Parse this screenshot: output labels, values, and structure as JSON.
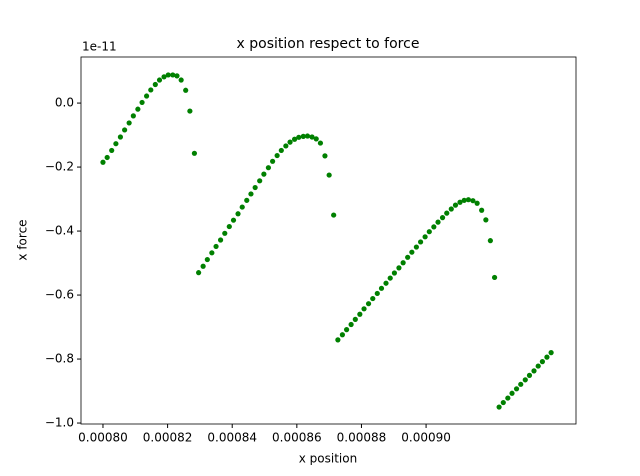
{
  "chart_data": {
    "type": "scatter",
    "title": "x position respect to force",
    "x_label": "x position",
    "y_label": "x force",
    "y_offset_label": "1e-11",
    "color": "#008000",
    "xlim": [
      0.0007932,
      0.0009464
    ],
    "ylim": [
      -1.003,
      0.144
    ],
    "xticks": [
      {
        "value": 0.0008,
        "label": "0.00080"
      },
      {
        "value": 0.00082,
        "label": "0.00082"
      },
      {
        "value": 0.00084,
        "label": "0.00084"
      },
      {
        "value": 0.00086,
        "label": "0.00086"
      },
      {
        "value": 0.00088,
        "label": "0.00088"
      },
      {
        "value": 0.0009,
        "label": "0.00090"
      }
    ],
    "yticks": [
      {
        "value": -1.0,
        "label": "−1.0"
      },
      {
        "value": -0.8,
        "label": "−0.8"
      },
      {
        "value": -0.6,
        "label": "−0.6"
      },
      {
        "value": -0.4,
        "label": "−0.4"
      },
      {
        "value": -0.2,
        "label": "−0.2"
      },
      {
        "value": 0.0,
        "label": "0.0"
      }
    ],
    "x": [
      0.0008,
      0.0008013,
      0.0008027,
      0.000804,
      0.0008054,
      0.0008067,
      0.0008081,
      0.0008094,
      0.0008108,
      0.0008121,
      0.0008135,
      0.0008148,
      0.0008162,
      0.0008175,
      0.0008189,
      0.0008202,
      0.0008216,
      0.0008229,
      0.0008242,
      0.0008256,
      0.0008269,
      0.0008283,
      0.0008296,
      0.000831,
      0.0008323,
      0.0008337,
      0.000835,
      0.0008364,
      0.0008377,
      0.0008391,
      0.0008404,
      0.0008418,
      0.0008431,
      0.0008445,
      0.0008458,
      0.0008471,
      0.0008485,
      0.0008498,
      0.0008512,
      0.0008525,
      0.0008539,
      0.0008552,
      0.0008566,
      0.0008579,
      0.0008593,
      0.0008606,
      0.000862,
      0.0008633,
      0.0008647,
      0.000866,
      0.0008673,
      0.0008687,
      0.00087,
      0.0008714,
      0.0008727,
      0.0008741,
      0.0008754,
      0.0008768,
      0.0008781,
      0.0008795,
      0.0008808,
      0.0008822,
      0.0008835,
      0.0008849,
      0.0008862,
      0.0008876,
      0.0008889,
      0.0008902,
      0.0008916,
      0.0008929,
      0.0008943,
      0.0008956,
      0.000897,
      0.0008983,
      0.0008997,
      0.000901,
      0.0009024,
      0.0009037,
      0.0009051,
      0.0009064,
      0.0009078,
      0.0009091,
      0.0009105,
      0.0009118,
      0.0009131,
      0.0009145,
      0.0009158,
      0.0009172,
      0.0009185,
      0.0009199,
      0.0009212,
      0.0009226,
      0.0009239,
      0.0009253,
      0.0009266,
      0.000928,
      0.0009293,
      0.0009307,
      0.000932,
      0.0009334,
      0.0009347,
      0.000936,
      0.0009374,
      0.0009387
    ],
    "y": [
      -0.185,
      -0.17,
      -0.148,
      -0.127,
      -0.106,
      -0.084,
      -0.062,
      -0.04,
      -0.019,
      0.002,
      0.022,
      0.041,
      0.058,
      0.072,
      0.082,
      0.088,
      0.088,
      0.085,
      0.072,
      0.04,
      -0.025,
      -0.157,
      -0.53,
      -0.51,
      -0.489,
      -0.468,
      -0.448,
      -0.428,
      -0.407,
      -0.386,
      -0.366,
      -0.346,
      -0.325,
      -0.304,
      -0.284,
      -0.264,
      -0.243,
      -0.222,
      -0.202,
      -0.182,
      -0.164,
      -0.148,
      -0.134,
      -0.122,
      -0.113,
      -0.107,
      -0.104,
      -0.103,
      -0.106,
      -0.112,
      -0.125,
      -0.165,
      -0.225,
      -0.35,
      -0.74,
      -0.724,
      -0.708,
      -0.692,
      -0.676,
      -0.66,
      -0.643,
      -0.627,
      -0.611,
      -0.595,
      -0.579,
      -0.563,
      -0.547,
      -0.531,
      -0.515,
      -0.499,
      -0.482,
      -0.466,
      -0.45,
      -0.434,
      -0.418,
      -0.402,
      -0.387,
      -0.372,
      -0.358,
      -0.344,
      -0.331,
      -0.319,
      -0.31,
      -0.304,
      -0.302,
      -0.305,
      -0.313,
      -0.335,
      -0.365,
      -0.43,
      -0.545,
      -0.95,
      -0.936,
      -0.922,
      -0.907,
      -0.893,
      -0.879,
      -0.865,
      -0.851,
      -0.837,
      -0.822,
      -0.808,
      -0.794,
      -0.78
    ]
  }
}
